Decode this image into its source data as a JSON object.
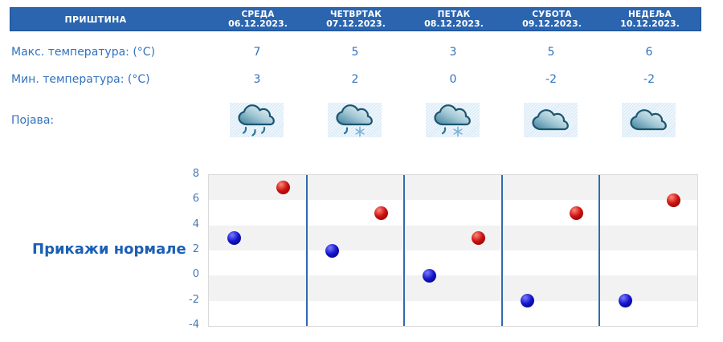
{
  "header": {
    "location": "ПРИШТИНА",
    "days": [
      {
        "name": "СРЕДА",
        "date": "06.12.2023."
      },
      {
        "name": "ЧЕТВРТАК",
        "date": "07.12.2023."
      },
      {
        "name": "ПЕТАК",
        "date": "08.12.2023."
      },
      {
        "name": "СУБОТА",
        "date": "09.12.2023."
      },
      {
        "name": "НЕДЕЉА",
        "date": "10.12.2023."
      }
    ]
  },
  "table": {
    "max_row": {
      "label": "Макс. температура: (°C)",
      "values": [
        "7",
        "5",
        "3",
        "5",
        "6"
      ]
    },
    "min_row": {
      "label": "Мин. температура: (°C)",
      "values": [
        "3",
        "2",
        "0",
        "-2",
        "-2"
      ]
    },
    "phenomena_row": {
      "label": "Појава:",
      "icons": [
        "cloud-rain-icon",
        "cloud-rain-snow-icon",
        "cloud-rain-snow-icon",
        "cloud-icon",
        "cloud-icon"
      ]
    }
  },
  "normals_button": {
    "label": "Прикажи нормале"
  },
  "chart_data": {
    "type": "scatter",
    "categories": [
      "СРЕДА 06.12.2023.",
      "ЧЕТВРТАК 07.12.2023.",
      "ПЕТАК 08.12.2023.",
      "СУБОТА 09.12.2023.",
      "НЕДЕЉА 10.12.2023."
    ],
    "series": [
      {
        "name": "Макс. температура (°C)",
        "color": "#cc1111",
        "highlight": "#ff8877",
        "shadow": "#7a0000",
        "values": [
          7,
          5,
          3,
          5,
          6
        ]
      },
      {
        "name": "Мин. температура (°C)",
        "color": "#1414cc",
        "highlight": "#7b7bff",
        "shadow": "#000066",
        "values": [
          3,
          2,
          0,
          -2,
          -2
        ]
      }
    ],
    "ylim": [
      -4,
      8
    ],
    "yticks": [
      8,
      6,
      4,
      2,
      0,
      -2,
      -4
    ],
    "band_step": 2,
    "legend": "none",
    "grid": "alternating horizontal 2-unit bands; blue vertical separators between days"
  },
  "colors": {
    "header_bg": "#2b65af",
    "header_border": "#1d5096",
    "header_text": "#ffffff",
    "label_text": "#3272bf",
    "normals_text": "#1b5fb5",
    "ytick_text": "#4779b3",
    "band_gray": "#f2f2f2",
    "band_white": "#ffffff",
    "day_separator": "#2f6bb0",
    "plot_border": "#dadada",
    "icon_bg": "#ddecf8"
  }
}
